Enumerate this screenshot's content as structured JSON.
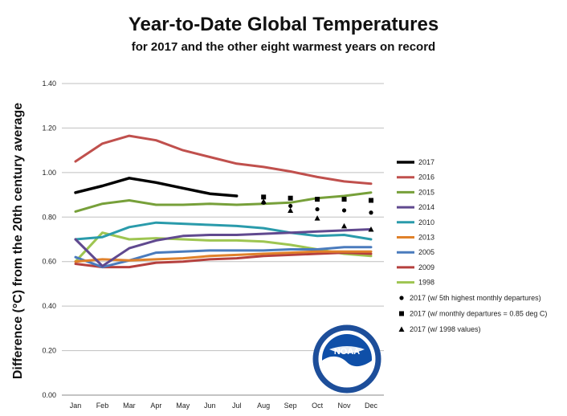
{
  "chart_data": {
    "type": "line",
    "title": "Year-to-Date Global Temperatures",
    "subtitle": "for 2017 and the other eight warmest years on record",
    "ylabel": "Difference (°C) from the 20th century average",
    "xlabel": "",
    "ylim": [
      0,
      1.4
    ],
    "yticks": [
      "0.00",
      "0.20",
      "0.40",
      "0.60",
      "0.80",
      "1.00",
      "1.20",
      "1.40"
    ],
    "categories": [
      "Jan",
      "Feb",
      "Mar",
      "Apr",
      "May",
      "Jun",
      "Jul",
      "Aug",
      "Sep",
      "Oct",
      "Nov",
      "Dec"
    ],
    "grid": true,
    "legend_position": "right",
    "series": [
      {
        "name": "2017",
        "color": "#000000",
        "width": 3.5,
        "values": [
          0.91,
          0.94,
          0.975,
          0.955,
          0.93,
          0.905,
          0.895,
          null,
          null,
          null,
          null,
          null
        ]
      },
      {
        "name": "2016",
        "color": "#c0504d",
        "width": 3,
        "values": [
          1.05,
          1.13,
          1.165,
          1.145,
          1.1,
          1.07,
          1.04,
          1.025,
          1.005,
          0.98,
          0.96,
          0.95
        ]
      },
      {
        "name": "2015",
        "color": "#77a03a",
        "width": 3,
        "values": [
          0.825,
          0.86,
          0.875,
          0.855,
          0.855,
          0.86,
          0.855,
          0.86,
          0.865,
          0.885,
          0.895,
          0.91
        ]
      },
      {
        "name": "2014",
        "color": "#60498f",
        "width": 3,
        "values": [
          0.7,
          0.58,
          0.66,
          0.695,
          0.715,
          0.72,
          0.72,
          0.725,
          0.73,
          0.735,
          0.74,
          0.745
        ]
      },
      {
        "name": "2010",
        "color": "#2a9bab",
        "width": 3,
        "values": [
          0.7,
          0.71,
          0.755,
          0.775,
          0.77,
          0.765,
          0.76,
          0.75,
          0.73,
          0.715,
          0.72,
          0.7
        ]
      },
      {
        "name": "2013",
        "color": "#e0812a",
        "width": 3,
        "values": [
          0.6,
          0.61,
          0.605,
          0.61,
          0.615,
          0.625,
          0.63,
          0.635,
          0.64,
          0.645,
          0.645,
          0.645
        ]
      },
      {
        "name": "2005",
        "color": "#4a7bbd",
        "width": 3,
        "values": [
          0.62,
          0.575,
          0.605,
          0.64,
          0.645,
          0.65,
          0.65,
          0.65,
          0.655,
          0.655,
          0.665,
          0.665
        ]
      },
      {
        "name": "2009",
        "color": "#b5403e",
        "width": 3,
        "values": [
          0.59,
          0.575,
          0.575,
          0.595,
          0.6,
          0.61,
          0.615,
          0.625,
          0.63,
          0.635,
          0.64,
          0.635
        ]
      },
      {
        "name": "1998",
        "color": "#9ec551",
        "width": 3,
        "values": [
          0.6,
          0.73,
          0.7,
          0.705,
          0.7,
          0.695,
          0.695,
          0.69,
          0.675,
          0.655,
          0.635,
          0.625
        ]
      }
    ],
    "markers": [
      {
        "name": "2017 (w/ 5th highest monthly departures)",
        "shape": "circle",
        "x": [
          "Aug",
          "Sep",
          "Oct",
          "Nov",
          "Dec"
        ],
        "values": [
          0.865,
          0.85,
          0.835,
          0.83,
          0.82
        ]
      },
      {
        "name": "2017 (w/ monthly departures = 0.85 deg C)",
        "shape": "square",
        "x": [
          "Aug",
          "Sep",
          "Oct",
          "Nov",
          "Dec"
        ],
        "values": [
          0.89,
          0.885,
          0.88,
          0.88,
          0.875
        ]
      },
      {
        "name": "2017 (w/ 1998 values)",
        "shape": "triangle",
        "x": [
          "Aug",
          "Sep",
          "Oct",
          "Nov",
          "Dec"
        ],
        "values": [
          0.87,
          0.83,
          0.795,
          0.76,
          0.745
        ]
      }
    ]
  },
  "logo": {
    "text": "NOAA",
    "ring_text": "NATIONAL OCEANIC AND ATMOSPHERIC ADMINISTRATION · U.S. DEPARTMENT OF COMMERCE"
  }
}
